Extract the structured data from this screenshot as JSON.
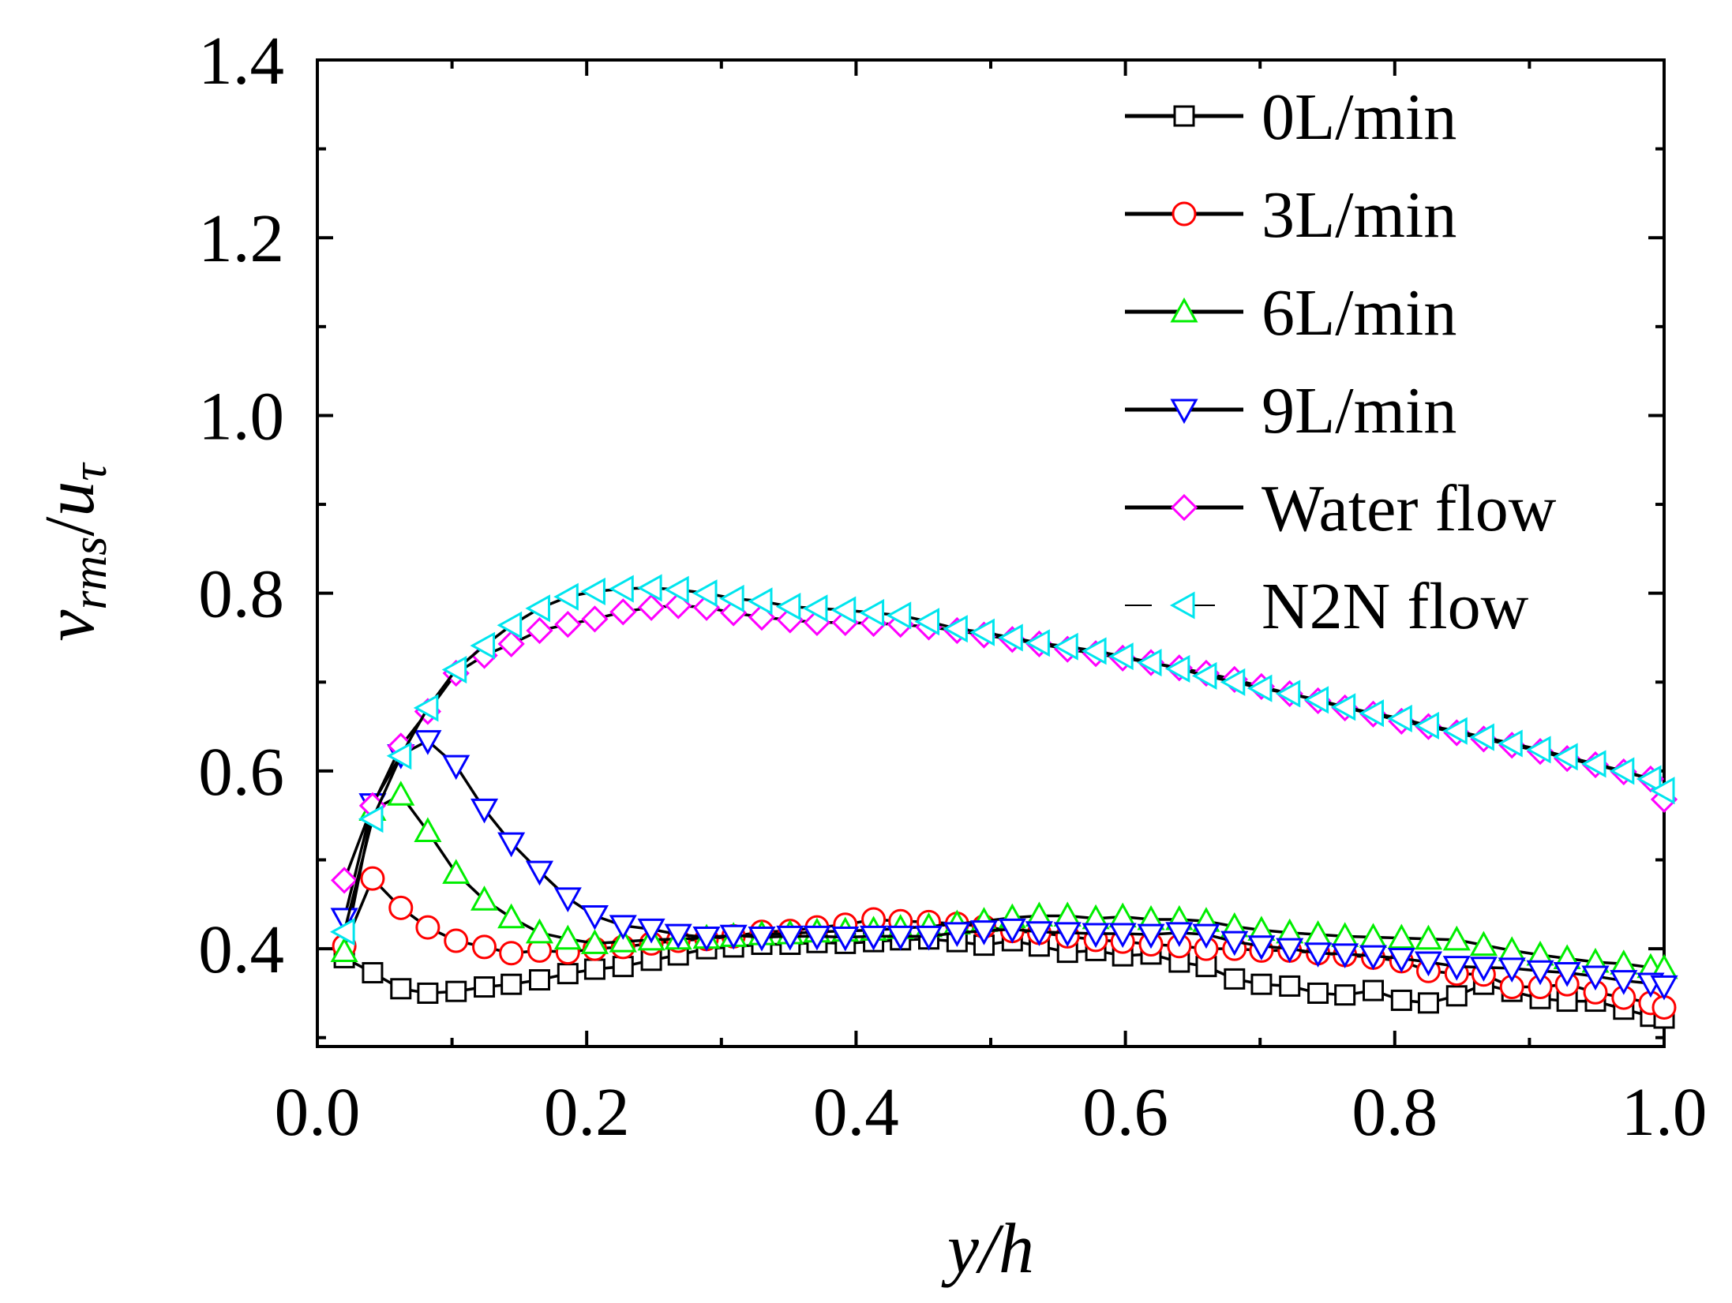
{
  "chart_data": {
    "type": "line",
    "title": "",
    "xlabel": "y/h",
    "ylabel": {
      "v": "v",
      "v_sub": "rms",
      "slash": "/",
      "u": "u",
      "u_sub": "τ"
    },
    "xlim": [
      0.0,
      1.0
    ],
    "ylim": [
      0.29,
      1.4
    ],
    "xticks": [
      0.0,
      0.2,
      0.4,
      0.6,
      0.8,
      1.0
    ],
    "xtick_labels": [
      "0.0",
      "0.2",
      "0.4",
      "0.6",
      "0.8",
      "1.0"
    ],
    "yticks": [
      0.4,
      0.6,
      0.8,
      1.0,
      1.2,
      1.4
    ],
    "ytick_labels": [
      "0.4",
      "0.6",
      "0.8",
      "1.0",
      "1.2",
      "1.4"
    ],
    "grid": false,
    "legend_position": "top-right",
    "x": [
      0.02,
      0.041,
      0.062,
      0.082,
      0.103,
      0.124,
      0.144,
      0.165,
      0.186,
      0.206,
      0.227,
      0.248,
      0.268,
      0.289,
      0.309,
      0.33,
      0.351,
      0.371,
      0.392,
      0.413,
      0.433,
      0.454,
      0.475,
      0.495,
      0.516,
      0.536,
      0.557,
      0.578,
      0.598,
      0.619,
      0.64,
      0.66,
      0.681,
      0.701,
      0.722,
      0.743,
      0.763,
      0.784,
      0.805,
      0.825,
      0.846,
      0.866,
      0.887,
      0.908,
      0.928,
      0.949,
      0.97,
      0.99,
      1.0
    ],
    "series": [
      {
        "name": "0L/min",
        "color": "#000000",
        "marker": "square",
        "values": [
          0.39,
          0.373,
          0.355,
          0.35,
          0.352,
          0.357,
          0.36,
          0.365,
          0.372,
          0.377,
          0.38,
          0.387,
          0.393,
          0.4,
          0.402,
          0.405,
          0.405,
          0.407,
          0.406,
          0.408,
          0.41,
          0.411,
          0.408,
          0.404,
          0.409,
          0.403,
          0.396,
          0.398,
          0.392,
          0.394,
          0.385,
          0.38,
          0.366,
          0.36,
          0.358,
          0.35,
          0.348,
          0.353,
          0.342,
          0.339,
          0.347,
          0.36,
          0.352,
          0.344,
          0.341,
          0.341,
          0.332,
          0.324,
          0.322
        ]
      },
      {
        "name": "3L/min",
        "color": "#ff0000",
        "marker": "circle",
        "values": [
          0.403,
          0.479,
          0.446,
          0.424,
          0.409,
          0.402,
          0.395,
          0.398,
          0.396,
          0.4,
          0.402,
          0.406,
          0.409,
          0.411,
          0.414,
          0.419,
          0.42,
          0.424,
          0.427,
          0.433,
          0.431,
          0.43,
          0.428,
          0.425,
          0.42,
          0.418,
          0.414,
          0.41,
          0.408,
          0.405,
          0.403,
          0.4,
          0.4,
          0.398,
          0.398,
          0.395,
          0.393,
          0.39,
          0.386,
          0.375,
          0.372,
          0.371,
          0.357,
          0.357,
          0.36,
          0.351,
          0.345,
          0.339,
          0.334
        ]
      },
      {
        "name": "6L/min",
        "color": "#00ee00",
        "marker": "triangle-up",
        "values": [
          0.397,
          0.556,
          0.573,
          0.532,
          0.485,
          0.455,
          0.435,
          0.418,
          0.411,
          0.406,
          0.408,
          0.41,
          0.411,
          0.412,
          0.414,
          0.416,
          0.417,
          0.419,
          0.42,
          0.421,
          0.423,
          0.425,
          0.428,
          0.431,
          0.435,
          0.437,
          0.437,
          0.434,
          0.436,
          0.433,
          0.433,
          0.431,
          0.425,
          0.421,
          0.418,
          0.416,
          0.414,
          0.413,
          0.412,
          0.411,
          0.41,
          0.404,
          0.398,
          0.393,
          0.389,
          0.385,
          0.383,
          0.379,
          0.378
        ]
      },
      {
        "name": "9L/min",
        "color": "#0000ff",
        "marker": "triangle-down",
        "values": [
          0.434,
          0.563,
          0.618,
          0.634,
          0.606,
          0.557,
          0.519,
          0.487,
          0.457,
          0.437,
          0.426,
          0.422,
          0.416,
          0.413,
          0.415,
          0.413,
          0.414,
          0.414,
          0.413,
          0.414,
          0.414,
          0.414,
          0.418,
          0.42,
          0.422,
          0.419,
          0.418,
          0.417,
          0.417,
          0.416,
          0.418,
          0.416,
          0.408,
          0.403,
          0.4,
          0.395,
          0.394,
          0.392,
          0.389,
          0.385,
          0.38,
          0.379,
          0.378,
          0.375,
          0.373,
          0.369,
          0.364,
          0.361,
          0.358
        ]
      },
      {
        "name": "Water flow",
        "color": "#ff00ff",
        "marker": "diamond",
        "values": [
          0.477,
          0.561,
          0.628,
          0.667,
          0.71,
          0.73,
          0.743,
          0.758,
          0.765,
          0.771,
          0.779,
          0.784,
          0.786,
          0.784,
          0.778,
          0.773,
          0.77,
          0.767,
          0.767,
          0.766,
          0.765,
          0.762,
          0.758,
          0.753,
          0.748,
          0.743,
          0.737,
          0.732,
          0.727,
          0.722,
          0.716,
          0.71,
          0.703,
          0.695,
          0.687,
          0.679,
          0.671,
          0.664,
          0.656,
          0.65,
          0.643,
          0.636,
          0.629,
          0.622,
          0.614,
          0.607,
          0.599,
          0.591,
          0.568
        ]
      },
      {
        "name": "N2N flow",
        "color": "#00e5ee",
        "marker": "triangle-left",
        "values": [
          0.419,
          0.546,
          0.617,
          0.671,
          0.714,
          0.741,
          0.764,
          0.783,
          0.796,
          0.802,
          0.805,
          0.806,
          0.804,
          0.8,
          0.794,
          0.791,
          0.785,
          0.783,
          0.781,
          0.778,
          0.775,
          0.768,
          0.76,
          0.756,
          0.75,
          0.744,
          0.74,
          0.735,
          0.729,
          0.722,
          0.715,
          0.707,
          0.7,
          0.693,
          0.687,
          0.68,
          0.672,
          0.665,
          0.659,
          0.651,
          0.645,
          0.638,
          0.631,
          0.624,
          0.616,
          0.608,
          0.6,
          0.591,
          0.578
        ]
      }
    ]
  }
}
